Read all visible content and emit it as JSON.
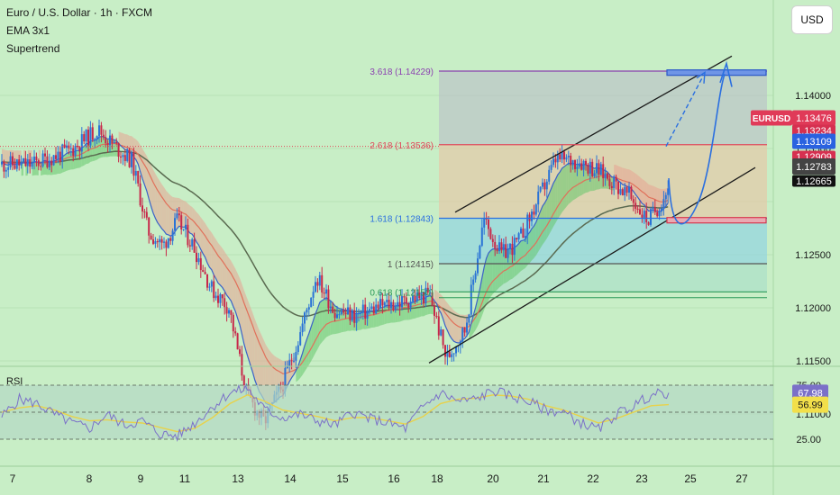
{
  "header": {
    "title": "Euro / U.S. Dollar · 1h · FXCM",
    "indicator1": "EMA 3x1",
    "indicator2": "Supertrend",
    "currency_button": "USD"
  },
  "rsi_label": "RSI",
  "colors": {
    "background": "#c8eec6",
    "bull_candle": "#2a73d6",
    "bear_candle": "#c8284a",
    "projection": "#2a6fe0",
    "fib_3618": "#8b3fb0",
    "fib_2618": "#e0485a",
    "fib_1618": "#2a6fe0",
    "channel": "#1a1a1a",
    "rsi_line": "#7b70c8",
    "rsi_ma": "#e8d24a"
  },
  "chart_data": [
    {
      "type": "candlestick",
      "symbol": "EURUSD",
      "timeframe": "1h",
      "x_ticks": [
        "7",
        "8",
        "9",
        "11",
        "13",
        "14",
        "15",
        "16",
        "18",
        "20",
        "21",
        "22",
        "23",
        "25",
        "27"
      ],
      "y_ticks": [
        "1.14000",
        "1.13500",
        "1.12500",
        "1.12000",
        "1.11500",
        "1.11000"
      ],
      "ylim": [
        1.1075,
        1.1448
      ],
      "close_path": [
        [
          "7",
          1.1335
        ],
        [
          "7",
          1.1348
        ],
        [
          "8",
          1.1368
        ],
        [
          "8",
          1.1352
        ],
        [
          "8",
          1.1338
        ],
        [
          "9",
          1.1272
        ],
        [
          "9",
          1.1258
        ],
        [
          "9",
          1.1282
        ],
        [
          "11",
          1.1258
        ],
        [
          "11",
          1.1218
        ],
        [
          "11",
          1.12
        ],
        [
          "13",
          1.1118
        ],
        [
          "13",
          1.1092
        ],
        [
          "13",
          1.1125
        ],
        [
          "14",
          1.1172
        ],
        [
          "14",
          1.123
        ],
        [
          "14",
          1.1198
        ],
        [
          "15",
          1.1192
        ],
        [
          "15",
          1.1202
        ],
        [
          "16",
          1.1205
        ],
        [
          "16",
          1.121
        ],
        [
          "16",
          1.1212
        ],
        [
          "18",
          1.1152
        ],
        [
          "18",
          1.118
        ],
        [
          "18",
          1.1283
        ],
        [
          "20",
          1.125
        ],
        [
          "20",
          1.1262
        ],
        [
          "20",
          1.1295
        ],
        [
          "21",
          1.134
        ],
        [
          "21",
          1.1338
        ],
        [
          "22",
          1.1325
        ],
        [
          "22",
          1.1305
        ],
        [
          "23",
          1.1282
        ],
        [
          "23",
          1.1298
        ],
        [
          "23",
          1.132
        ],
        [
          "23",
          1.1347
        ]
      ],
      "fibonacci": [
        {
          "label": "3.618 (1.14229)",
          "value": 1.14229
        },
        {
          "label": "2.618 (1.13536)",
          "value": 1.13536
        },
        {
          "label": "1.618 (1.12843)",
          "value": 1.12843
        },
        {
          "label": "1 (1.12415)",
          "value": 1.12415
        },
        {
          "label": "0.618 (1.12150)",
          "value": 1.1215
        }
      ],
      "price_labels": [
        {
          "label": "EURUSD",
          "value": "1.13476"
        },
        {
          "value": "1.13234"
        },
        {
          "value": "1.13109"
        },
        {
          "value": "1.12909"
        },
        {
          "value": "1.12783"
        },
        {
          "value": "1.12665"
        }
      ]
    },
    {
      "type": "line",
      "title": "RSI",
      "y_ticks": [
        "75.00",
        "25.00"
      ],
      "ylim": [
        15,
        85
      ],
      "series": [
        {
          "values": [
            46,
            62,
            58,
            48,
            40,
            35,
            48,
            38,
            42,
            30,
            28,
            40,
            55,
            68,
            72,
            52,
            45,
            48,
            42,
            38,
            50,
            44,
            40,
            35,
            55,
            68,
            60,
            62,
            70,
            65,
            60,
            52,
            50,
            40,
            34,
            48,
            56,
            66,
            68
          ]
        },
        {
          "values": [
            50,
            54,
            56,
            52,
            46,
            42,
            43,
            41,
            40,
            36,
            32,
            35,
            45,
            58,
            66,
            60,
            52,
            49,
            46,
            42,
            45,
            45,
            42,
            39,
            46,
            58,
            62,
            63,
            66,
            65,
            62,
            56,
            52,
            46,
            40,
            44,
            50,
            56,
            57
          ]
        }
      ],
      "value_labels": [
        "67.98",
        "56.99"
      ]
    }
  ]
}
